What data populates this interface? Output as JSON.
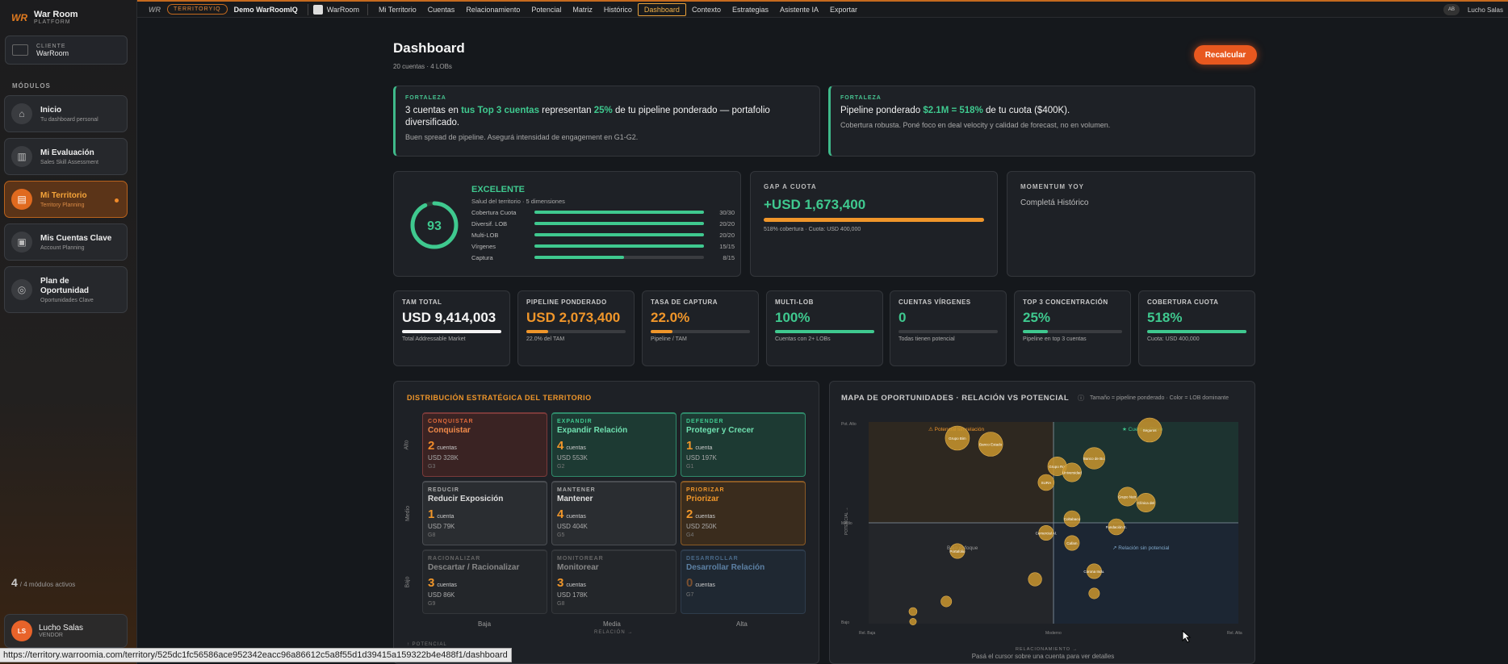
{
  "sidebar": {
    "brand_title": "War Room",
    "brand_sub": "PLATFORM",
    "brand_logo": "WR",
    "client_label": "CLIENTE",
    "client_name": "WarRoom",
    "modules_header": "MÓDULOS",
    "items": [
      {
        "title": "Inicio",
        "sub": "Tu dashboard personal",
        "icon": "home-icon"
      },
      {
        "title": "Mi Evaluación",
        "sub": "Sales Skill Assessment",
        "icon": "chart-icon"
      },
      {
        "title": "Mi Territorio",
        "sub": "Territory Planning",
        "icon": "map-icon"
      },
      {
        "title": "Mis Cuentas Clave",
        "sub": "Account Planning",
        "icon": "briefcase-icon"
      },
      {
        "title": "Plan de Oportunidad",
        "sub": "Oportunidades Clave",
        "icon": "target-icon"
      }
    ],
    "modules_count": "4",
    "modules_text": "/ 4 módulos activos",
    "user_initials": "LS",
    "user_name": "Lucho Salas",
    "user_role": "VENDOR"
  },
  "topbar": {
    "logo": "WR",
    "pill": "TERRITORYIQ",
    "app": "Demo WarRoomIQ",
    "workspace": "WarRoom",
    "tabs": [
      "Mi Territorio",
      "Cuentas",
      "Relacionamiento",
      "Potencial",
      "Matriz",
      "Histórico",
      "Dashboard",
      "Contexto",
      "Estrategias",
      "Asistente IA",
      "Exportar"
    ],
    "active_tab": "Dashboard",
    "avatar": "AB",
    "user": "Lucho Salas"
  },
  "header": {
    "title": "Dashboard",
    "subtitle": "20 cuentas · 4 LOBs",
    "recalc": "Recalcular"
  },
  "fortalezas": [
    {
      "tag": "FORTALEZA",
      "p1": "3 cuentas en ",
      "h1": "tus Top 3 cuentas",
      "p2": " representan ",
      "h2": "25%",
      "p3": " de tu pipeline ponderado — portafolio diversificado.",
      "sub": "Buen spread de pipeline. Asegurá intensidad de engagement en G1-G2."
    },
    {
      "tag": "FORTALEZA",
      "p1": "Pipeline ponderado ",
      "h1": "$2.1M = 518%",
      "p2": " de tu cuota ($400K).",
      "sub": "Cobertura robusta. Poné foco en deal velocity y calidad de forecast, no en volumen."
    }
  ],
  "health": {
    "score": "93",
    "score_frac": 0.93,
    "label": "EXCELENTE",
    "sub": "Salud del territorio · 5 dimensiones",
    "dims": [
      {
        "name": "Cobertura Cuota",
        "val": "30/30",
        "frac": 1.0
      },
      {
        "name": "Diversif. LOB",
        "val": "20/20",
        "frac": 1.0
      },
      {
        "name": "Multi-LOB",
        "val": "20/20",
        "frac": 1.0
      },
      {
        "name": "Vírgenes",
        "val": "15/15",
        "frac": 1.0
      },
      {
        "name": "Captura",
        "val": "8/15",
        "frac": 0.53
      }
    ]
  },
  "gap": {
    "title": "GAP A CUOTA",
    "value": "+USD 1,673,400",
    "sub": "518% cobertura · Cuota: USD 400,000",
    "frac": 1.0
  },
  "momentum": {
    "title": "MOMENTUM YOY",
    "value": "Completá Histórico"
  },
  "kpis": [
    {
      "title": "TAM TOTAL",
      "value": "USD 9,414,003",
      "sub": "Total Addressable Market",
      "frac": 1.0,
      "color": "#f5f5f5"
    },
    {
      "title": "PIPELINE PONDERADO",
      "value": "USD 2,073,400",
      "sub": "22.0% del TAM",
      "frac": 0.22,
      "color": "#f0962a"
    },
    {
      "title": "TASA DE CAPTURA",
      "value": "22.0%",
      "sub": "Pipeline / TAM",
      "frac": 0.22,
      "color": "#f0962a"
    },
    {
      "title": "MULTI-LOB",
      "value": "100%",
      "sub": "Cuentas con 2+ LOBs",
      "frac": 1.0,
      "color": "#3fc98f"
    },
    {
      "title": "CUENTAS VÍRGENES",
      "value": "0",
      "sub": "Todas tienen potencial",
      "frac": 0.0,
      "color": "#3fc98f"
    },
    {
      "title": "TOP 3 CONCENTRACIÓN",
      "value": "25%",
      "sub": "Pipeline en top 3 cuentas",
      "frac": 0.25,
      "color": "#3fc98f"
    },
    {
      "title": "COBERTURA CUOTA",
      "value": "518%",
      "sub": "Cuota: USD 400,000",
      "frac": 1.0,
      "color": "#3fc98f"
    }
  ],
  "distribution": {
    "title": "DISTRIBUCIÓN ESTRATÉGICA DEL TERRITORIO",
    "rows": [
      "Alto",
      "Medio",
      "Bajo"
    ],
    "cols": [
      "Baja",
      "Media",
      "Alta"
    ],
    "xlabel": "RELACIÓN →",
    "ylabel": "↑ POTENCIAL",
    "cells": [
      {
        "tag": "CONQUISTAR",
        "name": "Conquistar",
        "count": "2",
        "unit": "cuentas",
        "usd": "USD 328K",
        "g": "G3",
        "tone": "red"
      },
      {
        "tag": "EXPANDIR",
        "name": "Expandir Relación",
        "count": "4",
        "unit": "cuentas",
        "usd": "USD 553K",
        "g": "G2",
        "tone": "teal"
      },
      {
        "tag": "DEFENDER",
        "name": "Proteger y Crecer",
        "count": "1",
        "unit": "cuenta",
        "usd": "USD 197K",
        "g": "G1",
        "tone": "teal"
      },
      {
        "tag": "REDUCIR",
        "name": "Reducir Exposición",
        "count": "1",
        "unit": "cuenta",
        "usd": "USD 79K",
        "g": "G8",
        "tone": "grey"
      },
      {
        "tag": "MANTENER",
        "name": "Mantener",
        "count": "4",
        "unit": "cuentas",
        "usd": "USD 404K",
        "g": "G5",
        "tone": "grey"
      },
      {
        "tag": "PRIORIZAR",
        "name": "Priorizar",
        "count": "2",
        "unit": "cuentas",
        "usd": "USD 250K",
        "g": "G4",
        "tone": "amber"
      },
      {
        "tag": "RACIONALIZAR",
        "name": "Descartar / Racionalizar",
        "count": "3",
        "unit": "cuentas",
        "usd": "USD 86K",
        "g": "G9",
        "tone": "dim"
      },
      {
        "tag": "MONITOREAR",
        "name": "Monitorear",
        "count": "3",
        "unit": "cuentas",
        "usd": "USD 178K",
        "g": "G8",
        "tone": "dim"
      },
      {
        "tag": "DESARROLLAR",
        "name": "Desarrollar Relación",
        "count": "0",
        "unit": "cuentas",
        "usd": "",
        "g": "G7",
        "tone": "blue"
      }
    ]
  },
  "chart_data": {
    "type": "scatter",
    "title": "MAPA DE OPORTUNIDADES · RELACIÓN VS POTENCIAL",
    "legend_note": "Tamaño = pipeline ponderado · Color = LOB dominante",
    "xlabel": "RELACIONAMIENTO →",
    "ylabel": "POTENCIAL →",
    "x_ticks": [
      "Rel. Baja",
      "Moderno",
      "Rel. Alta"
    ],
    "y_ticks": [
      "Pot. Alto",
      "Medio",
      "Bajo"
    ],
    "quadrant_labels": [
      "⚠ Potencial sin relación",
      "★ Cuentas Clave",
      "Bajo enfoque",
      "↗ Relación sin potencial"
    ],
    "footer": "Pasá el cursor sobre una cuenta para ver detalles",
    "xlim": [
      0,
      100
    ],
    "ylim": [
      0,
      100
    ],
    "points": [
      {
        "label": "Grupo Bim",
        "x": 24,
        "y": 92,
        "size": 18
      },
      {
        "label": "Banco Estado",
        "x": 33,
        "y": 89,
        "size": 18
      },
      {
        "label": "Seguros",
        "x": 76,
        "y": 96,
        "size": 18
      },
      {
        "label": "Banco de Bo.",
        "x": 61,
        "y": 82,
        "size": 16
      },
      {
        "label": "Grupo Ro.",
        "x": 51,
        "y": 78,
        "size": 14
      },
      {
        "label": "Universidad",
        "x": 55,
        "y": 75,
        "size": 14
      },
      {
        "label": "SURA",
        "x": 48,
        "y": 70,
        "size": 12
      },
      {
        "label": "Grupo Nutr.",
        "x": 70,
        "y": 63,
        "size": 14
      },
      {
        "label": "Clínica del",
        "x": 75,
        "y": 60,
        "size": 14
      },
      {
        "label": "Coltabaco",
        "x": 55,
        "y": 52,
        "size": 12
      },
      {
        "label": "Fundación E.",
        "x": 67,
        "y": 48,
        "size": 12
      },
      {
        "label": "Comercial Al.",
        "x": 48,
        "y": 45,
        "size": 11
      },
      {
        "label": "Cafam",
        "x": 55,
        "y": 40,
        "size": 11
      },
      {
        "label": "Portafolio",
        "x": 24,
        "y": 36,
        "size": 11
      },
      {
        "label": "Corona Indu.",
        "x": 61,
        "y": 26,
        "size": 11
      },
      {
        "label": "",
        "x": 45,
        "y": 22,
        "size": 10
      },
      {
        "label": "",
        "x": 61,
        "y": 15,
        "size": 8
      },
      {
        "label": "",
        "x": 21,
        "y": 11,
        "size": 8
      },
      {
        "label": "",
        "x": 12,
        "y": 6,
        "size": 6
      },
      {
        "label": "",
        "x": 12,
        "y": 1,
        "size": 5
      }
    ]
  },
  "status_url": "https://territory.warroomia.com/territory/525dc1fc56586ace952342eacc96a86612c5a8f55d1d39415a159322b4e488f1/dashboard"
}
